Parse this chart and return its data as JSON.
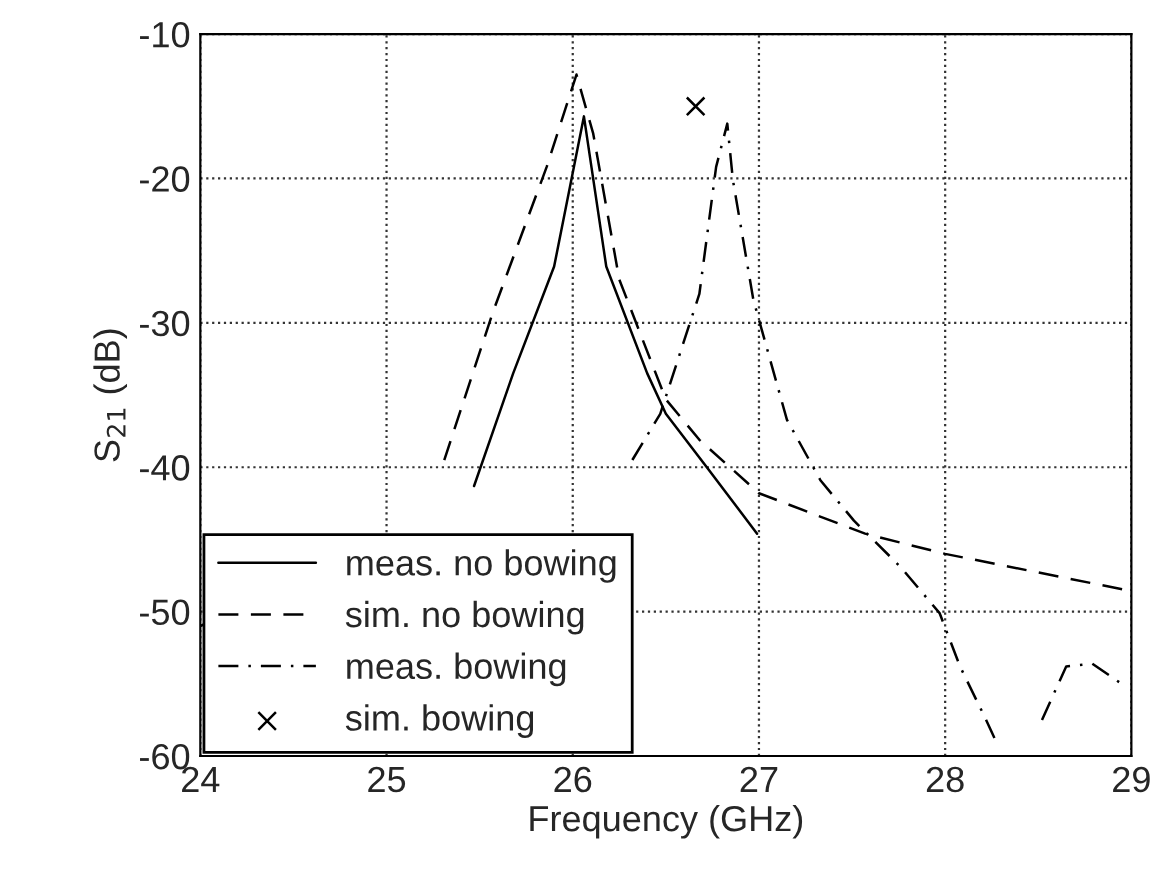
{
  "chart_data": {
    "type": "line",
    "xlabel": "Frequency (GHz)",
    "ylabel": "S$_{21}$ (dB)",
    "xlim": [
      24,
      29
    ],
    "ylim": [
      -60,
      -10
    ],
    "xticks": [
      24,
      25,
      26,
      27,
      28,
      29
    ],
    "yticks": [
      -60,
      -50,
      -40,
      -30,
      -20,
      -10
    ],
    "grid": true,
    "legend": "bottom left",
    "series": [
      {
        "name": "meas. no bowing",
        "color": "#000000",
        "line_style": "solid",
        "marker": "none",
        "x": [
          25.47,
          25.68,
          25.9,
          26.06,
          26.18,
          26.4,
          26.5,
          26.72,
          26.99
        ],
        "values": [
          -41.3,
          -33.5,
          -26.1,
          -15.7,
          -26.1,
          -33.5,
          -36.3,
          -40,
          -44.6
        ]
      },
      {
        "name": "sim. no bowing",
        "color": "#000000",
        "line_style": "dashed",
        "marker": "none",
        "x": [
          24,
          24.1,
          24.2,
          25.31,
          25.57,
          25.86,
          26.02,
          26.11,
          26.25,
          26.5,
          26.68,
          27.0,
          27.57,
          28.0,
          28.97
        ],
        "values": [
          -51.0,
          -50.4,
          null,
          -39.5,
          -29.3,
          -19.2,
          -12.8,
          -16.9,
          -27.0,
          -35.3,
          -38.1,
          -41.8,
          -44.6,
          -46.0,
          -48.5
        ]
      },
      {
        "name": "meas. bowing",
        "color": "#000000",
        "line_style": "dashdot",
        "marker": "none",
        "x": [
          26.32,
          26.47,
          26.68,
          26.77,
          26.83,
          26.86,
          26.97,
          27.15,
          27.33,
          27.51,
          27.76,
          27.97,
          28.08,
          28.22,
          28.27,
          28.4,
          28.52,
          28.65,
          28.79,
          28.97
        ],
        "values": [
          -39.5,
          -36.3,
          -28,
          -19.2,
          -16.2,
          -20.1,
          -28.4,
          -36.7,
          -40.9,
          -43.7,
          -46.9,
          -50.1,
          -53.8,
          -57.5,
          -58.9,
          null,
          -57.5,
          -53.8,
          -53.6,
          -55.2
        ]
      },
      {
        "name": "sim. bowing",
        "type": "scatter",
        "color": "#000000",
        "marker": "cross",
        "x": [
          26.66
        ],
        "values": [
          -15.0
        ]
      }
    ]
  }
}
